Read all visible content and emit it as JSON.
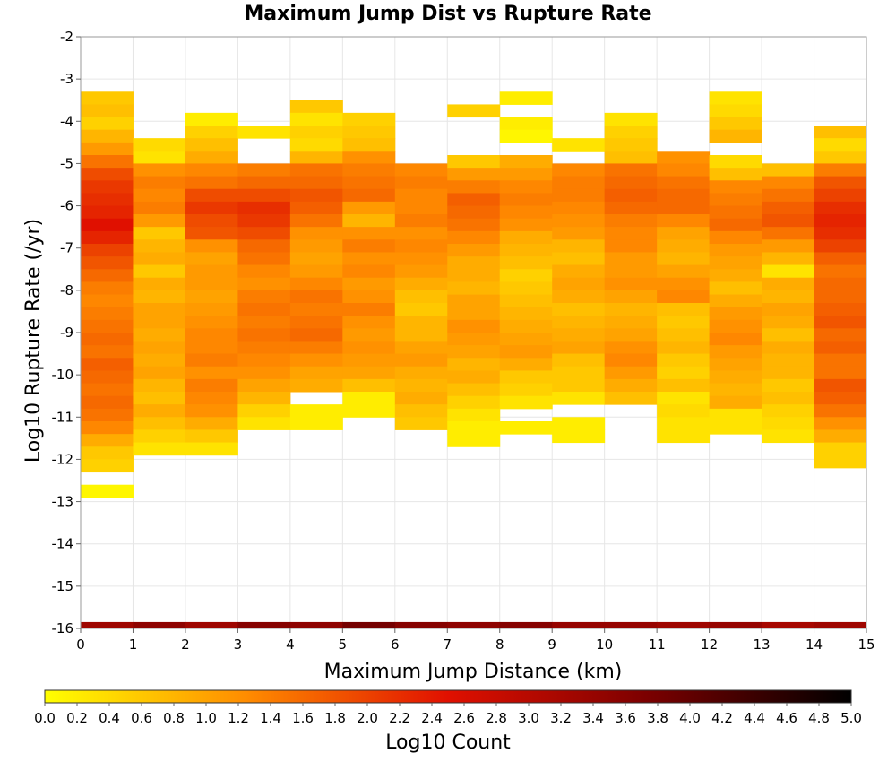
{
  "chart_data": {
    "type": "heatmap",
    "title": "Maximum Jump Dist vs Rupture Rate",
    "xlabel": "Maximum Jump Distance (km)",
    "ylabel": "Log10 Rupture Rate (/yr)",
    "xlim": [
      0,
      15
    ],
    "ylim": [
      -16,
      -2
    ],
    "x_ticks": [
      "0",
      "1",
      "2",
      "3",
      "4",
      "5",
      "6",
      "7",
      "8",
      "9",
      "10",
      "11",
      "12",
      "13",
      "14",
      "15"
    ],
    "y_ticks": [
      "-2",
      "-3",
      "-4",
      "-5",
      "-6",
      "-7",
      "-8",
      "-9",
      "-10",
      "-11",
      "-12",
      "-13",
      "-14",
      "-15",
      "-16"
    ],
    "x_bin_width": 1,
    "y_bin_height": 0.3,
    "grid": true,
    "colorbar": {
      "label": "Log10 Count",
      "range": [
        0,
        5
      ],
      "ticks": [
        "0.0",
        "0.2",
        "0.4",
        "0.6",
        "0.8",
        "1.0",
        "1.2",
        "1.4",
        "1.6",
        "1.8",
        "2.0",
        "2.2",
        "2.4",
        "2.6",
        "2.8",
        "3.0",
        "3.2",
        "3.4",
        "3.6",
        "3.8",
        "4.0",
        "4.2",
        "4.4",
        "4.6",
        "4.8",
        "5.0"
      ],
      "colors": [
        "#ffff00",
        "#ff8c00",
        "#e01000",
        "#7a0000",
        "#000000"
      ]
    },
    "columns": [
      {
        "x": 0.5,
        "y_top": -3.3,
        "values": [
          0.6,
          0.7,
          0.5,
          0.8,
          1.1,
          1.5,
          1.9,
          2.1,
          2.2,
          2.3,
          2.5,
          2.3,
          2.0,
          1.8,
          1.6,
          1.4,
          1.3,
          1.4,
          1.5,
          1.6,
          1.5,
          1.7,
          1.6,
          1.5,
          1.6,
          1.5,
          1.3,
          0.9,
          0.6,
          0.5,
          null,
          0.1
        ],
        "bottom_row": 3.3
      },
      {
        "x": 1.5,
        "y_top": -4.4,
        "values": [
          0.4,
          0.3,
          1.2,
          1.4,
          1.3,
          1.4,
          1.1,
          0.6,
          0.8,
          0.9,
          0.6,
          0.9,
          0.8,
          1.0,
          1.0,
          0.9,
          1.0,
          0.9,
          1.0,
          0.8,
          0.7,
          0.9,
          0.7,
          0.5,
          0.3
        ],
        "bottom_row": 3.5
      },
      {
        "x": 2.5,
        "y_top": -3.8,
        "values": [
          0.2,
          0.5,
          0.7,
          0.9,
          1.3,
          1.5,
          1.9,
          2.1,
          1.9,
          1.8,
          1.2,
          1.0,
          1.1,
          1.1,
          1.0,
          1.1,
          1.2,
          1.3,
          1.3,
          1.4,
          1.2,
          1.4,
          1.3,
          1.2,
          0.9,
          0.6,
          0.3
        ],
        "bottom_row": 3.3
      },
      {
        "x": 3.5,
        "y_top": -4.1,
        "values": [
          0.3,
          null,
          null,
          1.4,
          1.6,
          1.9,
          2.2,
          2.1,
          1.9,
          1.6,
          1.5,
          1.3,
          1.2,
          1.4,
          1.5,
          1.4,
          1.5,
          1.4,
          1.3,
          1.2,
          1.0,
          0.8,
          0.5,
          0.3
        ],
        "bottom_row": 3.6
      },
      {
        "x": 4.5,
        "y_top": -3.5,
        "values": [
          0.6,
          0.3,
          0.5,
          0.4,
          0.8,
          1.5,
          1.6,
          1.8,
          1.7,
          1.5,
          1.2,
          1.1,
          1.0,
          1.1,
          1.3,
          1.5,
          1.4,
          1.5,
          1.6,
          1.4,
          1.2,
          1.0,
          0.9,
          null,
          0.2,
          0.2
        ],
        "bottom_row": 3.5
      },
      {
        "x": 5.5,
        "y_top": -3.8,
        "values": [
          0.5,
          0.6,
          0.7,
          1.2,
          1.4,
          1.5,
          1.6,
          1.1,
          0.8,
          1.2,
          1.4,
          1.2,
          1.3,
          1.1,
          1.2,
          1.4,
          1.2,
          1.1,
          1.2,
          1.1,
          1.0,
          0.7,
          0.2,
          0.2
        ],
        "bottom_row": 3.8
      },
      {
        "x": 6.5,
        "y_top": -5.0,
        "values": [
          1.3,
          1.4,
          1.3,
          1.3,
          1.4,
          1.2,
          1.3,
          1.2,
          1.1,
          0.9,
          0.7,
          0.6,
          0.8,
          0.8,
          1.0,
          1.1,
          0.9,
          0.8,
          0.9,
          0.7,
          0.6
        ],
        "bottom_row": 3.6
      },
      {
        "x": 7.5,
        "y_top": -3.6,
        "values": [
          0.5,
          null,
          null,
          null,
          0.6,
          1.1,
          1.4,
          1.7,
          1.6,
          1.5,
          1.3,
          1.1,
          0.9,
          0.9,
          0.8,
          1.0,
          1.0,
          1.2,
          1.1,
          1.0,
          0.8,
          0.9,
          0.7,
          0.5,
          0.3,
          0.2,
          0.2
        ],
        "bottom_row": 3.5
      },
      {
        "x": 8.5,
        "y_top": -3.3,
        "values": [
          0.2,
          null,
          0.2,
          0.1,
          null,
          0.9,
          1.1,
          1.3,
          1.4,
          1.3,
          1.2,
          0.9,
          0.8,
          0.7,
          0.5,
          0.6,
          0.7,
          0.8,
          0.9,
          1.0,
          1.1,
          0.9,
          0.6,
          0.5,
          0.3,
          null,
          0.2
        ],
        "bottom_row": 3.6
      },
      {
        "x": 9.5,
        "y_top": -4.4,
        "values": [
          0.3,
          null,
          1.3,
          1.4,
          1.4,
          1.3,
          1.2,
          1.1,
          0.8,
          0.7,
          0.9,
          1.0,
          0.9,
          0.7,
          0.8,
          0.9,
          1.0,
          0.7,
          0.6,
          0.6,
          0.3,
          null,
          0.2,
          0.2
        ],
        "bottom_row": 3.4
      },
      {
        "x": 10.5,
        "y_top": -3.8,
        "values": [
          0.3,
          0.5,
          0.6,
          0.7,
          1.5,
          1.6,
          1.7,
          1.6,
          1.4,
          1.3,
          1.3,
          1.1,
          1.1,
          1.2,
          1.0,
          0.8,
          0.9,
          1.0,
          1.2,
          1.3,
          1.1,
          0.9,
          0.7
        ],
        "bottom_row": 3.4
      },
      {
        "x": 11.5,
        "y_top": -4.7,
        "values": [
          1.2,
          1.3,
          1.5,
          1.6,
          1.6,
          1.3,
          1.0,
          0.9,
          0.8,
          1.0,
          1.2,
          1.3,
          0.7,
          0.6,
          0.7,
          0.8,
          0.6,
          0.5,
          0.7,
          0.3,
          0.4,
          0.3,
          0.3
        ],
        "bottom_row": 3.3
      },
      {
        "x": 12.5,
        "y_top": -3.3,
        "values": [
          0.3,
          0.4,
          0.6,
          0.8,
          null,
          0.4,
          0.7,
          1.3,
          1.4,
          1.5,
          1.6,
          1.3,
          1.1,
          1.0,
          0.9,
          0.7,
          0.9,
          1.1,
          1.2,
          1.3,
          1.1,
          1.0,
          0.9,
          0.8,
          0.9,
          0.3,
          0.3
        ],
        "bottom_row": 3.4
      },
      {
        "x": 13.5,
        "y_top": -5.0,
        "values": [
          0.7,
          1.3,
          1.5,
          1.7,
          1.8,
          1.5,
          1.1,
          0.8,
          0.3,
          0.9,
          0.8,
          1.0,
          0.9,
          0.7,
          0.9,
          0.8,
          0.8,
          0.6,
          0.7,
          0.5,
          0.4,
          0.3
        ],
        "bottom_row": 3.2
      },
      {
        "x": 14.5,
        "y_top": -4.1,
        "values": [
          0.7,
          0.4,
          0.6,
          1.4,
          1.8,
          2.0,
          2.2,
          2.3,
          2.2,
          2.0,
          1.7,
          1.5,
          1.6,
          1.6,
          1.7,
          1.8,
          1.6,
          1.7,
          1.5,
          1.5,
          1.8,
          1.7,
          1.5,
          1.2,
          0.9,
          0.5,
          0.5
        ],
        "bottom_row": 3.3
      }
    ]
  }
}
